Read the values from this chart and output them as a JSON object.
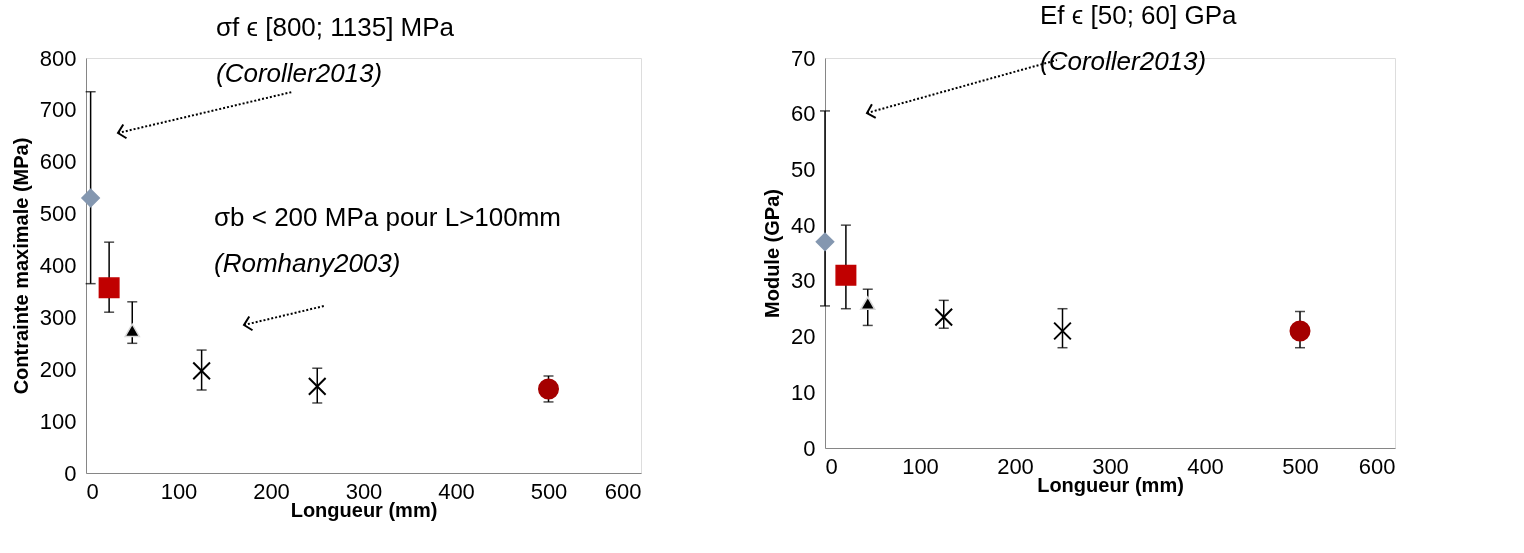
{
  "chart_data": [
    {
      "type": "scatter",
      "xlabel": "Longueur (mm)",
      "ylabel": "Contrainte maximale (MPa)",
      "xlim": [
        0,
        600
      ],
      "xticks": [
        0,
        100,
        200,
        300,
        400,
        500,
        600
      ],
      "ylim": [
        0,
        800
      ],
      "yticks": [
        0,
        100,
        200,
        300,
        400,
        500,
        600,
        700,
        800
      ],
      "grid": false,
      "annotations": [
        "σf ϵ [800; 1135] MPa\n(Coroller2013)",
        "σb < 200 MPa pour L>100mm\n(Romhany2003)"
      ],
      "series": [
        {
          "color": "#8497b0",
          "marker": "diamond",
          "x": [
            5
          ],
          "values": [
            530
          ],
          "errors": [
            [
              365,
              735
            ]
          ]
        },
        {
          "color": "#c00000",
          "marker": "square",
          "x": [
            25
          ],
          "values": [
            357
          ],
          "errors": [
            [
              310,
              445
            ]
          ]
        },
        {
          "color": "#000000",
          "marker": "triangle",
          "x": [
            50
          ],
          "values": [
            275
          ],
          "errors": [
            [
              250,
              330
            ]
          ]
        },
        {
          "color": "#000000",
          "marker": "cross",
          "x": [
            125
          ],
          "values": [
            197
          ],
          "errors": [
            [
              160,
              237
            ]
          ]
        },
        {
          "color": "#000000",
          "marker": "cross",
          "x": [
            250
          ],
          "values": [
            167
          ],
          "errors": [
            [
              135,
              202
            ]
          ]
        },
        {
          "color": "#a50000",
          "marker": "circle",
          "x": [
            500
          ],
          "values": [
            162
          ],
          "errors": [
            [
              137,
              187
            ]
          ]
        }
      ]
    },
    {
      "type": "scatter",
      "xlabel": "Longueur (mm)",
      "ylabel": "Module (GPa)",
      "xlim": [
        0,
        600
      ],
      "xticks": [
        0,
        100,
        200,
        300,
        400,
        500,
        600
      ],
      "ylim": [
        0,
        70
      ],
      "yticks": [
        0,
        10,
        20,
        30,
        40,
        50,
        60,
        70
      ],
      "grid": false,
      "annotations": [
        "Ef ϵ [50; 60] GPa\n(Coroller2013)"
      ],
      "series": [
        {
          "color": "#8497b0",
          "marker": "diamond",
          "x": [
            0
          ],
          "values": [
            37
          ],
          "errors": [
            [
              25.5,
              60.5
            ]
          ]
        },
        {
          "color": "#c00000",
          "marker": "square",
          "x": [
            22
          ],
          "values": [
            31
          ],
          "errors": [
            [
              25,
              40
            ]
          ]
        },
        {
          "color": "#000000",
          "marker": "triangle",
          "x": [
            45
          ],
          "values": [
            26
          ],
          "errors": [
            [
              22,
              28.5
            ]
          ]
        },
        {
          "color": "#000000",
          "marker": "cross",
          "x": [
            125
          ],
          "values": [
            23.5
          ],
          "errors": [
            [
              21.5,
              26.5
            ]
          ]
        },
        {
          "color": "#000000",
          "marker": "cross",
          "x": [
            250
          ],
          "values": [
            21
          ],
          "errors": [
            [
              18,
              25
            ]
          ]
        },
        {
          "color": "#a50000",
          "marker": "circle",
          "x": [
            500
          ],
          "values": [
            21
          ],
          "errors": [
            [
              18,
              24.5
            ]
          ]
        }
      ]
    }
  ]
}
